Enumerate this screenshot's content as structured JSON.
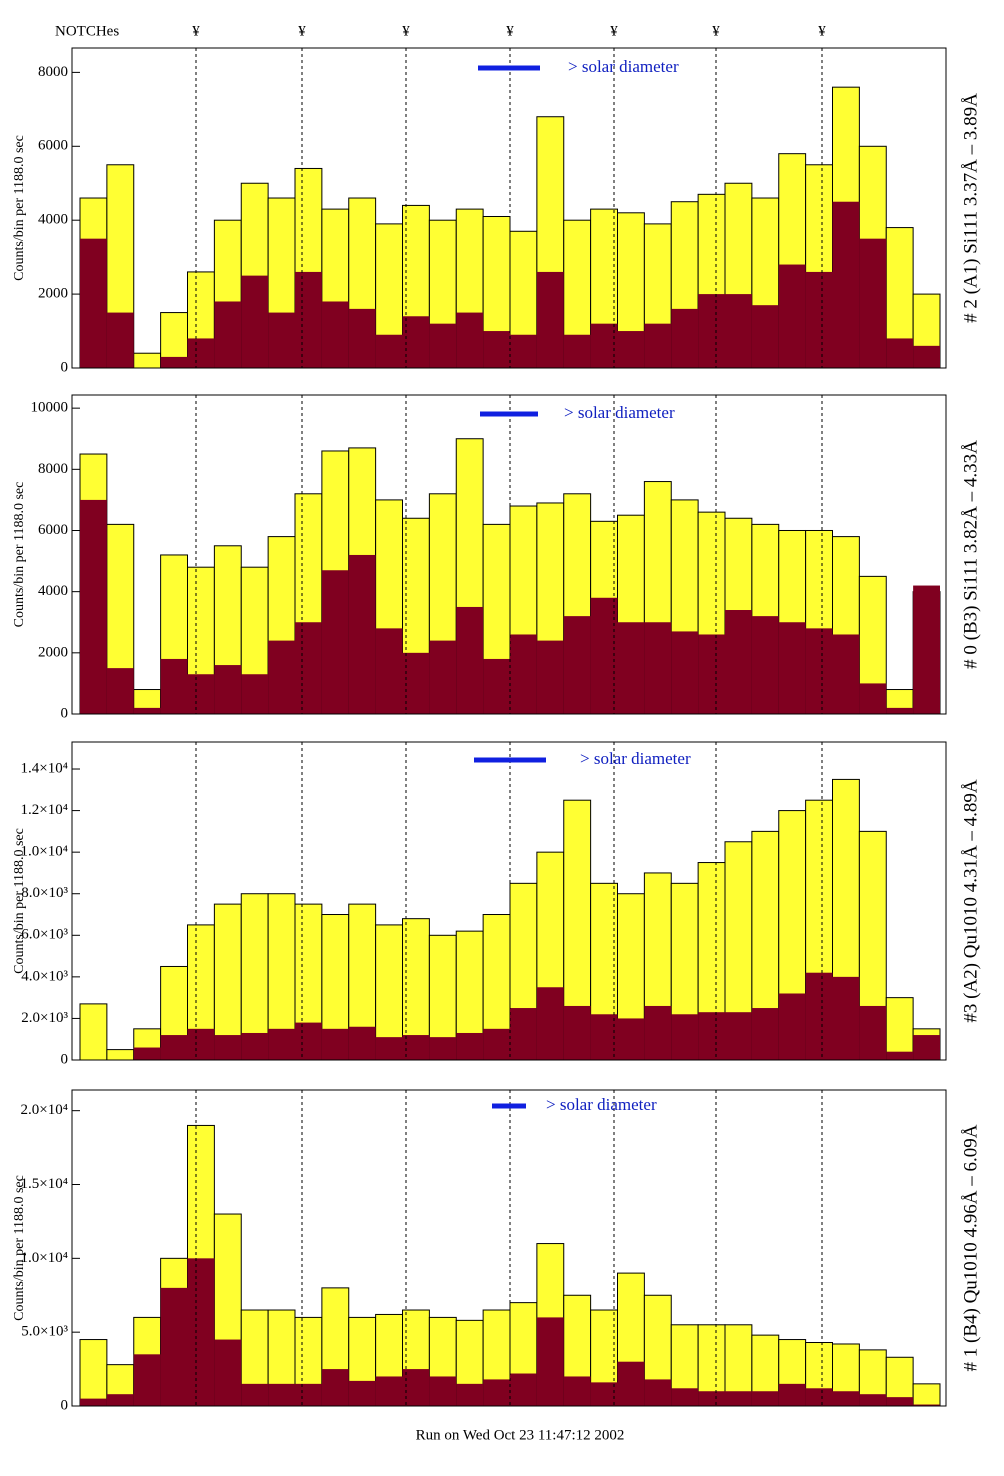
{
  "notch_title": "NOTCHes",
  "notch_labels": [
    "¥",
    "¥",
    "¥",
    "¥",
    "¥",
    "¥",
    "¥"
  ],
  "footer": "Run on Wed Oct 23 11:47:12 2002",
  "chart_data": [
    {
      "type": "histogram",
      "y_label": "Counts/bin per   1188.0 sec",
      "side_label": "# 2 (A1) Si111  3.37Å – 3.89Å",
      "legend_text": "> solar diameter",
      "ylim": [
        0,
        8660
      ],
      "yticks": [
        0,
        2000,
        4000,
        6000,
        8000
      ],
      "series": [
        {
          "color": "#ffff33",
          "values": [
            4600,
            5500,
            400,
            1500,
            2600,
            4000,
            5000,
            4600,
            5400,
            4300,
            4600,
            3900,
            4400,
            4000,
            4300,
            4100,
            3700,
            6800,
            4000,
            4300,
            4200,
            3900,
            4500,
            4700,
            5000,
            4600,
            5800,
            5500,
            7600,
            6000,
            3800,
            2000
          ]
        },
        {
          "color": "#800020",
          "values": [
            3500,
            1500,
            0,
            300,
            800,
            1800,
            2500,
            1500,
            2600,
            1800,
            1600,
            900,
            1400,
            1200,
            1500,
            1000,
            900,
            2600,
            900,
            1200,
            1000,
            1200,
            1600,
            2000,
            2000,
            1700,
            2800,
            2600,
            4500,
            3500,
            800,
            600
          ]
        }
      ]
    },
    {
      "type": "histogram",
      "y_label": "Counts/bin per   1188.0 sec",
      "side_label": "# 0 (B3) Si111  3.82Å – 4.33Å",
      "legend_text": "> solar diameter",
      "ylim": [
        0,
        10430
      ],
      "yticks": [
        0,
        2000,
        4000,
        6000,
        8000,
        10000
      ],
      "series": [
        {
          "color": "#ffff33",
          "values": [
            8500,
            6200,
            800,
            5200,
            4800,
            5500,
            4800,
            5800,
            7200,
            8600,
            8700,
            7000,
            6400,
            7200,
            9000,
            6200,
            6800,
            6900,
            7200,
            6300,
            6500,
            7600,
            7000,
            6600,
            6400,
            6200,
            6000,
            6000,
            5800,
            4500,
            800,
            4000
          ]
        },
        {
          "color": "#800020",
          "values": [
            7000,
            1500,
            200,
            1800,
            1300,
            1600,
            1300,
            2400,
            3000,
            4700,
            5200,
            2800,
            2000,
            2400,
            3500,
            1800,
            2600,
            2400,
            3200,
            3800,
            3000,
            3000,
            2700,
            2600,
            3400,
            3200,
            3000,
            2800,
            2600,
            1000,
            200,
            4200
          ]
        }
      ]
    },
    {
      "type": "histogram",
      "y_label": "Counts/bin per   1188.0 sec",
      "side_label": "#3 (A2) Qu1010  4.31Å – 4.89Å",
      "legend_text": "> solar diameter",
      "ylim": [
        0,
        15300
      ],
      "yticks": [
        0,
        {
          "value": 2000,
          "label": "2.0×10³"
        },
        {
          "value": 4000,
          "label": "4.0×10³"
        },
        {
          "value": 6000,
          "label": "6.0×10³"
        },
        {
          "value": 8000,
          "label": "8.0×10³"
        },
        {
          "value": 10000,
          "label": "1.0×10⁴"
        },
        {
          "value": 12000,
          "label": "1.2×10⁴"
        },
        {
          "value": 14000,
          "label": "1.4×10⁴"
        }
      ],
      "series": [
        {
          "color": "#ffff33",
          "values": [
            2700,
            500,
            1500,
            4500,
            6500,
            7500,
            8000,
            8000,
            7500,
            7000,
            7500,
            6500,
            6800,
            6000,
            6200,
            7000,
            8500,
            10000,
            12500,
            8500,
            8000,
            9000,
            8500,
            9500,
            10500,
            11000,
            12000,
            12500,
            13500,
            11000,
            3000,
            1500
          ]
        },
        {
          "color": "#800020",
          "values": [
            0,
            0,
            600,
            1200,
            1500,
            1200,
            1300,
            1500,
            1800,
            1500,
            1600,
            1100,
            1200,
            1100,
            1300,
            1500,
            2500,
            3500,
            2600,
            2200,
            2000,
            2600,
            2200,
            2300,
            2300,
            2500,
            3200,
            4200,
            4000,
            2600,
            400,
            1200
          ]
        }
      ]
    },
    {
      "type": "histogram",
      "y_label": "Counts/bin per   1188.0 sec",
      "side_label": "# 1 (B4) Qu1010 4.96Å – 6.09Å",
      "legend_text": "> solar diameter",
      "ylim": [
        0,
        21400
      ],
      "yticks": [
        0,
        {
          "value": 5000,
          "label": "5.0×10³"
        },
        {
          "value": 10000,
          "label": "1.0×10⁴"
        },
        {
          "value": 15000,
          "label": "1.5×10⁴"
        },
        {
          "value": 20000,
          "label": "2.0×10⁴"
        }
      ],
      "series": [
        {
          "color": "#ffff33",
          "values": [
            4500,
            2800,
            6000,
            10000,
            19000,
            13000,
            6500,
            6500,
            6000,
            8000,
            6000,
            6200,
            6500,
            6000,
            5800,
            6500,
            7000,
            11000,
            7500,
            6500,
            9000,
            7500,
            5500,
            5500,
            5500,
            4800,
            4500,
            4300,
            4200,
            3800,
            3300,
            1500
          ]
        },
        {
          "color": "#800020",
          "values": [
            500,
            800,
            3500,
            8000,
            10000,
            4500,
            1500,
            1500,
            1500,
            2500,
            1700,
            2000,
            2500,
            2000,
            1500,
            1800,
            2200,
            6000,
            2000,
            1600,
            3000,
            1800,
            1200,
            1000,
            1000,
            1000,
            1500,
            1200,
            1000,
            800,
            600,
            100
          ]
        }
      ]
    }
  ]
}
